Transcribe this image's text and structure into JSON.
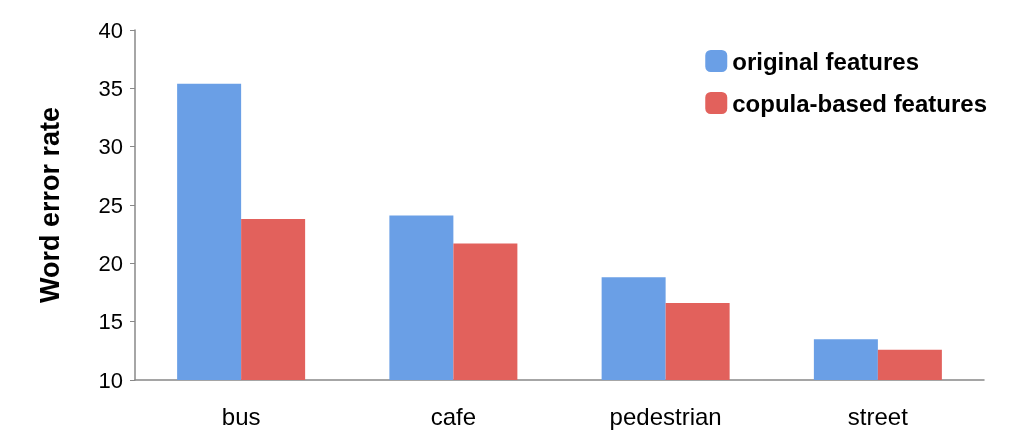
{
  "chart_data": {
    "type": "bar",
    "ylabel": "Word error rate",
    "categories": [
      "bus",
      "cafe",
      "pedestrian",
      "street"
    ],
    "series": [
      {
        "name": "original features",
        "color": "#6a9fe6",
        "values": [
          35.4,
          24.1,
          18.8,
          13.5
        ]
      },
      {
        "name": "copula-based features",
        "color": "#e2615c",
        "values": [
          23.8,
          21.7,
          16.6,
          12.6
        ]
      }
    ],
    "ylim": [
      10,
      40
    ],
    "yticks": [
      10,
      15,
      20,
      25,
      30,
      35,
      40
    ],
    "grid": false,
    "legend": "top right"
  }
}
